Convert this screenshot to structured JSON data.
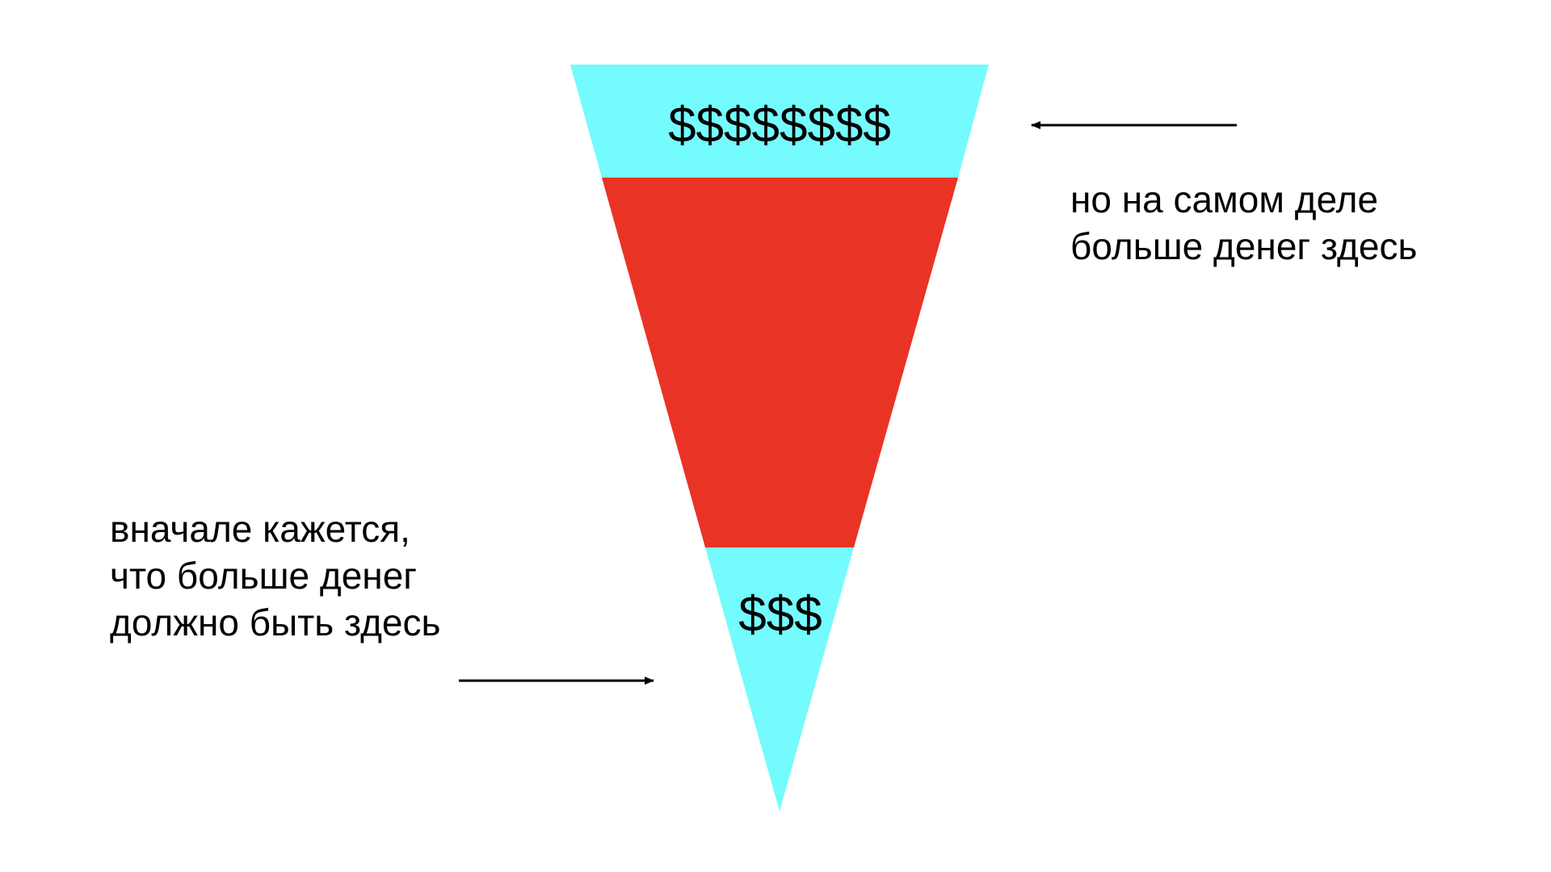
{
  "funnel": {
    "top_label": "$$$$$$$$",
    "bottom_label": "$$$",
    "colors": {
      "top_band": "#74FBFD",
      "middle_band": "#E93325",
      "bottom_band": "#74FBFD"
    }
  },
  "annotations": {
    "right_note": [
      "но на самом деле",
      "больше денег здесь"
    ],
    "left_note": [
      "вначале кажется,",
      "что больше денег",
      "должно быть здесь"
    ]
  },
  "arrows": {
    "color": "#000000"
  }
}
